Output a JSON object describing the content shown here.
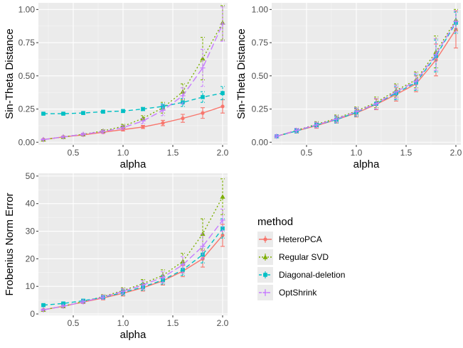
{
  "chart_data": [
    {
      "type": "line",
      "panel": "top-left",
      "title": "",
      "xlabel": "alpha",
      "ylabel": "Sin-Theta Distance",
      "xlim": [
        0.15,
        2.05
      ],
      "ylim": [
        -0.02,
        1.05
      ],
      "xticks": [
        0.5,
        1.0,
        1.5,
        2.0
      ],
      "xtick_labels": [
        "0.5",
        "1.0",
        "1.5",
        "2.0"
      ],
      "yticks": [
        0.0,
        0.25,
        0.5,
        0.75,
        1.0
      ],
      "ytick_labels": [
        "0.00",
        "0.25",
        "0.50",
        "0.75",
        "1.00"
      ],
      "x": [
        0.2,
        0.4,
        0.6,
        0.8,
        1.0,
        1.2,
        1.4,
        1.6,
        1.8,
        2.0
      ],
      "series": [
        {
          "name": "HeteroPCA",
          "values": [
            0.02,
            0.04,
            0.055,
            0.075,
            0.095,
            0.115,
            0.145,
            0.18,
            0.22,
            0.27
          ],
          "err": [
            0.005,
            0.005,
            0.006,
            0.008,
            0.01,
            0.012,
            0.02,
            0.03,
            0.04,
            0.05
          ]
        },
        {
          "name": "Regular SVD",
          "values": [
            0.02,
            0.04,
            0.06,
            0.085,
            0.12,
            0.18,
            0.26,
            0.38,
            0.63,
            0.9
          ],
          "err": [
            0.005,
            0.005,
            0.008,
            0.01,
            0.015,
            0.02,
            0.04,
            0.06,
            0.16,
            0.13
          ]
        },
        {
          "name": "Diagonal-deletion",
          "values": [
            0.215,
            0.215,
            0.22,
            0.23,
            0.235,
            0.25,
            0.27,
            0.3,
            0.34,
            0.37
          ],
          "err": [
            0.005,
            0.005,
            0.006,
            0.008,
            0.01,
            0.012,
            0.02,
            0.03,
            0.04,
            0.05
          ]
        },
        {
          "name": "OptShrink",
          "values": [
            0.02,
            0.04,
            0.06,
            0.08,
            0.11,
            0.16,
            0.24,
            0.35,
            0.56,
            0.89
          ],
          "err": [
            0.005,
            0.005,
            0.008,
            0.01,
            0.015,
            0.02,
            0.04,
            0.06,
            0.14,
            0.13
          ]
        }
      ]
    },
    {
      "type": "line",
      "panel": "top-right",
      "title": "",
      "xlabel": "alpha",
      "ylabel": "Sin-Theta Distance",
      "xlim": [
        0.15,
        2.05
      ],
      "ylim": [
        -0.02,
        1.05
      ],
      "xticks": [
        0.5,
        1.0,
        1.5,
        2.0
      ],
      "xtick_labels": [
        "0.5",
        "1.0",
        "1.5",
        "2.0"
      ],
      "yticks": [
        0.0,
        0.25,
        0.5,
        0.75,
        1.0
      ],
      "ytick_labels": [
        "0.00",
        "0.25",
        "0.50",
        "0.75",
        "1.00"
      ],
      "x": [
        0.2,
        0.4,
        0.6,
        0.8,
        1.0,
        1.2,
        1.4,
        1.6,
        1.8,
        2.0
      ],
      "series": [
        {
          "name": "HeteroPCA",
          "values": [
            0.045,
            0.085,
            0.125,
            0.17,
            0.22,
            0.285,
            0.36,
            0.44,
            0.62,
            0.85
          ],
          "err": [
            0.01,
            0.015,
            0.02,
            0.025,
            0.03,
            0.04,
            0.05,
            0.06,
            0.12,
            0.14
          ]
        },
        {
          "name": "Regular SVD",
          "values": [
            0.045,
            0.09,
            0.135,
            0.18,
            0.235,
            0.3,
            0.39,
            0.47,
            0.68,
            0.92
          ],
          "err": [
            0.01,
            0.015,
            0.02,
            0.025,
            0.03,
            0.04,
            0.05,
            0.06,
            0.12,
            0.08
          ]
        },
        {
          "name": "Diagonal-deletion",
          "values": [
            0.045,
            0.085,
            0.13,
            0.17,
            0.225,
            0.29,
            0.37,
            0.45,
            0.65,
            0.9
          ],
          "err": [
            0.01,
            0.015,
            0.02,
            0.025,
            0.03,
            0.04,
            0.05,
            0.06,
            0.12,
            0.08
          ]
        },
        {
          "name": "OptShrink",
          "values": [
            0.045,
            0.09,
            0.13,
            0.175,
            0.23,
            0.29,
            0.38,
            0.46,
            0.66,
            0.91
          ],
          "err": [
            0.01,
            0.015,
            0.02,
            0.025,
            0.03,
            0.04,
            0.05,
            0.06,
            0.12,
            0.08
          ]
        }
      ]
    },
    {
      "type": "line",
      "panel": "bottom-left",
      "title": "",
      "xlabel": "alpha",
      "ylabel": "Frobenius Norm Error",
      "xlim": [
        0.15,
        2.05
      ],
      "ylim": [
        -0.5,
        51
      ],
      "xticks": [
        0.5,
        1.0,
        1.5,
        2.0
      ],
      "xtick_labels": [
        "0.5",
        "1.0",
        "1.5",
        "2.0"
      ],
      "yticks": [
        0,
        10,
        20,
        30,
        40,
        50
      ],
      "ytick_labels": [
        "0",
        "10",
        "20",
        "30",
        "40",
        "50"
      ],
      "x": [
        0.2,
        0.4,
        0.6,
        0.8,
        1.0,
        1.2,
        1.4,
        1.6,
        1.8,
        2.0
      ],
      "series": [
        {
          "name": "HeteroPCA",
          "values": [
            1.5,
            2.8,
            4.3,
            5.8,
            7.5,
            9.5,
            12,
            15.5,
            20,
            28.5
          ],
          "err": [
            0.3,
            0.4,
            0.5,
            0.7,
            1.0,
            1.2,
            1.5,
            2.0,
            3.0,
            4.0
          ]
        },
        {
          "name": "Regular SVD",
          "values": [
            1.5,
            2.8,
            4.5,
            6.3,
            8.5,
            11,
            14,
            19,
            29,
            42.5
          ],
          "err": [
            0.3,
            0.4,
            0.5,
            0.7,
            1.0,
            1.5,
            2.0,
            3.0,
            5.5,
            6.5
          ]
        },
        {
          "name": "Diagonal-deletion",
          "values": [
            3.2,
            3.8,
            4.8,
            6.0,
            7.8,
            9.8,
            12.3,
            16,
            21.5,
            31
          ],
          "err": [
            0.3,
            0.4,
            0.5,
            0.7,
            1.0,
            1.2,
            1.5,
            2.0,
            3.0,
            3.5
          ]
        },
        {
          "name": "OptShrink",
          "values": [
            1.5,
            2.8,
            4.4,
            6.1,
            8.2,
            10.5,
            13.3,
            17.8,
            24.5,
            34
          ],
          "err": [
            0.3,
            0.4,
            0.5,
            0.7,
            1.0,
            1.5,
            2.0,
            3.0,
            4.5,
            4.0
          ]
        }
      ]
    }
  ],
  "legend": {
    "title": "method",
    "items": [
      {
        "name": "HeteroPCA",
        "color": "#F8766D",
        "dash": "solid",
        "marker": "circle"
      },
      {
        "name": "Regular SVD",
        "color": "#7CAE00",
        "dash": "dotted",
        "marker": "triangle"
      },
      {
        "name": "Diagonal-deletion",
        "color": "#00BFC4",
        "dash": "dashed",
        "marker": "square"
      },
      {
        "name": "OptShrink",
        "color": "#C77CFF",
        "dash": "longdash",
        "marker": "plus"
      }
    ]
  },
  "colors": {
    "panel_background": "#EBEBEB",
    "grid_major": "#FFFFFF",
    "tick_text": "#4D4D4D",
    "tick_mark": "#333333"
  }
}
